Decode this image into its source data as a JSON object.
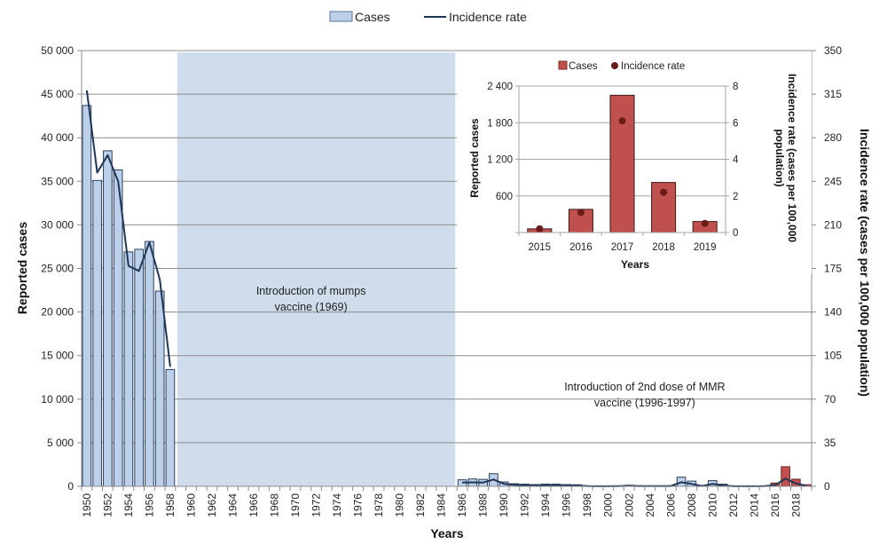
{
  "chart_data": [
    {
      "type": "bar",
      "name": "main",
      "legend": [
        {
          "label": "Cases",
          "kind": "bar",
          "color": "#bcd0ea",
          "stroke": "#2a3f5e"
        },
        {
          "label": "Incidence rate",
          "kind": "line",
          "color": "#1f3656"
        }
      ],
      "legend_position": "top-center",
      "xlabel": "Years",
      "ylabel": "Reported cases",
      "y2label": "Incidence rate (cases per 100,000 population)",
      "ylim": [
        0,
        50000
      ],
      "y2lim": [
        0,
        350
      ],
      "yticks": [
        "0",
        "5 000",
        "10 000",
        "15 000",
        "20 000",
        "25 000",
        "30 000",
        "35 000",
        "40 000",
        "45 000",
        "50 000"
      ],
      "y2ticks": [
        "0",
        "35",
        "70",
        "105",
        "140",
        "175",
        "210",
        "245",
        "280",
        "315",
        "350"
      ],
      "grid": true,
      "x_start": 1950,
      "x_end": 2019,
      "xtick_labels": [
        "1950",
        "1952",
        "1954",
        "1956",
        "1958",
        "1960",
        "1962",
        "1964",
        "1966",
        "1968",
        "1970",
        "1972",
        "1974",
        "1976",
        "1978",
        "1980",
        "1982",
        "1984",
        "1986",
        "1988",
        "1990",
        "1992",
        "1994",
        "1996",
        "1998",
        "2000",
        "2002",
        "2004",
        "2006",
        "2008",
        "2010",
        "2012",
        "2014",
        "2016",
        "2018"
      ],
      "cases": [
        {
          "year": 1950,
          "value": 43700
        },
        {
          "year": 1951,
          "value": 35100
        },
        {
          "year": 1952,
          "value": 38500
        },
        {
          "year": 1953,
          "value": 36300
        },
        {
          "year": 1954,
          "value": 26900
        },
        {
          "year": 1955,
          "value": 27200
        },
        {
          "year": 1956,
          "value": 28100
        },
        {
          "year": 1957,
          "value": 22400
        },
        {
          "year": 1958,
          "value": 13400
        },
        {
          "year": 1986,
          "value": 750
        },
        {
          "year": 1987,
          "value": 850
        },
        {
          "year": 1988,
          "value": 800
        },
        {
          "year": 1989,
          "value": 1450
        },
        {
          "year": 1990,
          "value": 500
        },
        {
          "year": 1991,
          "value": 300
        },
        {
          "year": 1992,
          "value": 250
        },
        {
          "year": 1993,
          "value": 200
        },
        {
          "year": 1994,
          "value": 250
        },
        {
          "year": 1995,
          "value": 250
        },
        {
          "year": 1996,
          "value": 200
        },
        {
          "year": 1997,
          "value": 180
        },
        {
          "year": 1998,
          "value": 50
        },
        {
          "year": 1999,
          "value": 40
        },
        {
          "year": 2000,
          "value": 40
        },
        {
          "year": 2001,
          "value": 50
        },
        {
          "year": 2002,
          "value": 120
        },
        {
          "year": 2003,
          "value": 60
        },
        {
          "year": 2004,
          "value": 50
        },
        {
          "year": 2005,
          "value": 60
        },
        {
          "year": 2006,
          "value": 60
        },
        {
          "year": 2007,
          "value": 1050
        },
        {
          "year": 2008,
          "value": 600
        },
        {
          "year": 2009,
          "value": 100
        },
        {
          "year": 2010,
          "value": 650
        },
        {
          "year": 2011,
          "value": 250
        },
        {
          "year": 2012,
          "value": 50
        },
        {
          "year": 2013,
          "value": 40
        },
        {
          "year": 2014,
          "value": 40
        },
        {
          "year": 2015,
          "value": 60
        },
        {
          "year": 2016,
          "value": 380
        },
        {
          "year": 2017,
          "value": 2250
        },
        {
          "year": 2018,
          "value": 820
        },
        {
          "year": 2019,
          "value": 180
        }
      ],
      "highlight_years": [
        2016,
        2017,
        2018,
        2019
      ],
      "highlight_color": "#c0504d",
      "incidence_rate": [
        {
          "year": 1950,
          "value": 318
        },
        {
          "year": 1951,
          "value": 252
        },
        {
          "year": 1952,
          "value": 266
        },
        {
          "year": 1953,
          "value": 245
        },
        {
          "year": 1954,
          "value": 177
        },
        {
          "year": 1955,
          "value": 173
        },
        {
          "year": 1956,
          "value": 196
        },
        {
          "year": 1957,
          "value": 166
        },
        {
          "year": 1958,
          "value": 96
        },
        {
          "year": 1986,
          "value": 3.0
        },
        {
          "year": 1987,
          "value": 3.2
        },
        {
          "year": 1988,
          "value": 3.0
        },
        {
          "year": 1989,
          "value": 5.5
        },
        {
          "year": 1990,
          "value": 2.0
        },
        {
          "year": 1991,
          "value": 1.2
        },
        {
          "year": 1992,
          "value": 1.0
        },
        {
          "year": 1993,
          "value": 0.8
        },
        {
          "year": 1994,
          "value": 1.0
        },
        {
          "year": 1995,
          "value": 1.0
        },
        {
          "year": 1996,
          "value": 0.8
        },
        {
          "year": 1997,
          "value": 0.7
        },
        {
          "year": 1998,
          "value": 0.2
        },
        {
          "year": 1999,
          "value": 0.1
        },
        {
          "year": 2000,
          "value": 0.1
        },
        {
          "year": 2001,
          "value": 0.2
        },
        {
          "year": 2002,
          "value": 0.4
        },
        {
          "year": 2003,
          "value": 0.2
        },
        {
          "year": 2004,
          "value": 0.2
        },
        {
          "year": 2005,
          "value": 0.2
        },
        {
          "year": 2006,
          "value": 0.2
        },
        {
          "year": 2007,
          "value": 3.3
        },
        {
          "year": 2008,
          "value": 1.9
        },
        {
          "year": 2009,
          "value": 0.3
        },
        {
          "year": 2010,
          "value": 1.9
        },
        {
          "year": 2011,
          "value": 0.7
        },
        {
          "year": 2012,
          "value": 0.1
        },
        {
          "year": 2013,
          "value": 0.1
        },
        {
          "year": 2014,
          "value": 0.1
        },
        {
          "year": 2015,
          "value": 0.2
        },
        {
          "year": 2016,
          "value": 1.1
        },
        {
          "year": 2017,
          "value": 6.1
        },
        {
          "year": 2018,
          "value": 2.2
        },
        {
          "year": 2019,
          "value": 0.5
        }
      ],
      "shaded_region": {
        "from_year": 1959,
        "to_year": 1985,
        "color": "#cfdcec"
      },
      "annotations": [
        {
          "lines": [
            "Introduction  of mumps",
            "vaccine (1969)"
          ],
          "year": 1971.5,
          "value": 22000
        },
        {
          "lines": [
            "Introduction of 2nd dose of MMR",
            "vaccine (1996-1997)"
          ],
          "year": 2003.5,
          "value": 11000
        }
      ]
    },
    {
      "type": "bar",
      "name": "inset",
      "legend": [
        {
          "label": "Cases",
          "kind": "bar",
          "color": "#c0504d"
        },
        {
          "label": "Incidence rate",
          "kind": "marker",
          "color": "#6b1a1a"
        }
      ],
      "legend_position": "top-center",
      "categories": [
        "2015",
        "2016",
        "2017",
        "2018",
        "2019"
      ],
      "cases": [
        60,
        380,
        2250,
        820,
        180
      ],
      "incidence_rate": [
        0.2,
        1.1,
        6.1,
        2.2,
        0.5
      ],
      "xlabel": "Years",
      "ylabel": "Reported cases",
      "y2label": "Incidence rate (cases per 100,000 population)",
      "ylim": [
        0,
        2400
      ],
      "y2lim": [
        0,
        8
      ],
      "yticks": [
        "",
        "600",
        "1 200",
        "1 800",
        "2 400"
      ],
      "y2ticks": [
        "0",
        "2",
        "4",
        "6",
        "8"
      ],
      "grid": true
    }
  ]
}
